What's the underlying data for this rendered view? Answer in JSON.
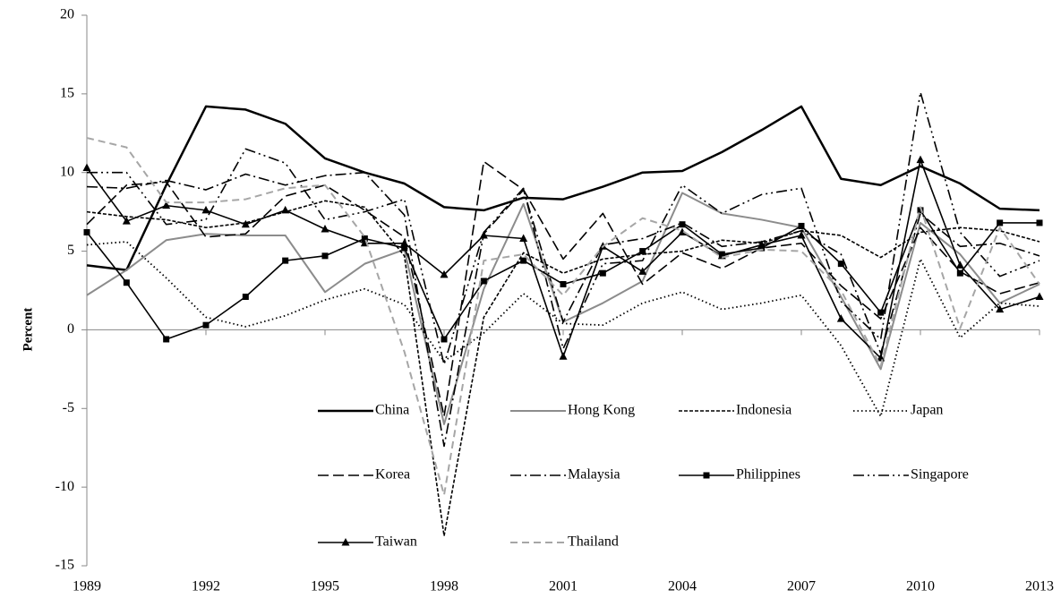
{
  "chart_data": {
    "type": "line",
    "y_label": "Percent",
    "x": [
      1989,
      1990,
      1991,
      1992,
      1993,
      1994,
      1995,
      1996,
      1997,
      1998,
      1999,
      2000,
      2001,
      2002,
      2003,
      2004,
      2005,
      2006,
      2007,
      2008,
      2009,
      2010,
      2011,
      2012,
      2013
    ],
    "xlim": [
      1989,
      2013
    ],
    "xticks": [
      1989,
      1992,
      1995,
      1998,
      2001,
      2004,
      2007,
      2010,
      2013
    ],
    "ylim": [
      -15,
      20
    ],
    "yticks": [
      -15,
      -10,
      -5,
      0,
      5,
      10,
      15,
      20
    ],
    "grid": false,
    "series": [
      {
        "name": "China",
        "color": "#000000",
        "width": 2.5,
        "dash": "none",
        "marker": "none",
        "values": [
          4.1,
          3.8,
          9.2,
          14.2,
          14.0,
          13.1,
          10.9,
          10.0,
          9.3,
          7.8,
          7.6,
          8.4,
          8.3,
          9.1,
          10.0,
          10.1,
          11.3,
          12.7,
          14.2,
          9.6,
          9.2,
          10.4,
          9.3,
          7.7,
          7.6
        ]
      },
      {
        "name": "Hong Kong",
        "color": "#8c8c8c",
        "width": 2,
        "dash": "none",
        "marker": "none",
        "values": [
          2.2,
          3.8,
          5.7,
          6.1,
          6.0,
          6.0,
          2.4,
          4.2,
          5.1,
          -6.0,
          2.6,
          8.0,
          0.5,
          1.7,
          3.1,
          8.7,
          7.4,
          7.0,
          6.5,
          2.1,
          -2.5,
          6.8,
          4.8,
          1.7,
          2.9
        ]
      },
      {
        "name": "Indonesia",
        "color": "#000000",
        "width": 1.6,
        "dash": "4 2",
        "marker": "none",
        "values": [
          7.5,
          7.2,
          7.0,
          6.5,
          6.8,
          7.5,
          8.2,
          7.8,
          4.7,
          -13.1,
          0.8,
          4.9,
          3.6,
          4.5,
          4.8,
          5.0,
          5.7,
          5.5,
          6.3,
          6.0,
          4.6,
          6.2,
          6.5,
          6.3,
          5.6
        ]
      },
      {
        "name": "Japan",
        "color": "#000000",
        "width": 1.8,
        "dash": "1.5 3",
        "marker": "none",
        "values": [
          5.4,
          5.6,
          3.3,
          0.8,
          0.2,
          0.9,
          1.9,
          2.6,
          1.6,
          -2.0,
          -0.2,
          2.3,
          0.4,
          0.3,
          1.7,
          2.4,
          1.3,
          1.7,
          2.2,
          -1.0,
          -5.5,
          4.5,
          -0.5,
          1.7,
          1.5
        ]
      },
      {
        "name": "Korea",
        "color": "#000000",
        "width": 1.6,
        "dash": "12 5",
        "marker": "none",
        "values": [
          6.7,
          9.2,
          9.4,
          5.9,
          6.1,
          8.5,
          9.2,
          7.6,
          5.9,
          -5.5,
          10.7,
          8.9,
          4.5,
          7.4,
          2.9,
          4.9,
          3.9,
          5.2,
          5.5,
          2.8,
          0.7,
          6.5,
          3.7,
          2.3,
          3.0
        ]
      },
      {
        "name": "Malaysia",
        "color": "#000000",
        "width": 1.6,
        "dash": "12 4 2 4",
        "marker": "none",
        "values": [
          9.1,
          9.0,
          9.5,
          8.9,
          9.9,
          9.2,
          9.8,
          10.0,
          7.3,
          -7.4,
          6.1,
          8.9,
          0.5,
          5.4,
          5.8,
          6.8,
          5.3,
          5.6,
          6.3,
          4.8,
          -1.5,
          7.4,
          5.3,
          5.5,
          4.7
        ]
      },
      {
        "name": "Philippines",
        "color": "#000000",
        "width": 1.6,
        "dash": "none",
        "marker": "square",
        "values": [
          6.2,
          3.0,
          -0.6,
          0.3,
          2.1,
          4.4,
          4.7,
          5.8,
          5.2,
          -0.6,
          3.1,
          4.4,
          2.9,
          3.6,
          5.0,
          6.7,
          4.8,
          5.2,
          6.6,
          4.2,
          1.1,
          7.6,
          3.6,
          6.8,
          6.8
        ]
      },
      {
        "name": "Singapore",
        "color": "#000000",
        "width": 1.6,
        "dash": "12 4 2 4 2 4",
        "marker": "none",
        "values": [
          10.0,
          10.0,
          6.7,
          7.0,
          11.5,
          10.6,
          7.0,
          7.5,
          8.3,
          -2.2,
          6.2,
          9.0,
          -1.2,
          4.2,
          4.4,
          9.2,
          7.4,
          8.6,
          9.0,
          1.8,
          -0.6,
          15.1,
          6.2,
          3.4,
          4.4
        ]
      },
      {
        "name": "Taiwan",
        "color": "#000000",
        "width": 1.6,
        "dash": "none",
        "marker": "triangle",
        "values": [
          10.3,
          6.9,
          7.9,
          7.6,
          6.7,
          7.6,
          6.4,
          5.5,
          5.5,
          3.5,
          6.0,
          5.8,
          -1.7,
          5.3,
          3.7,
          6.2,
          4.7,
          5.4,
          6.0,
          0.7,
          -1.8,
          10.8,
          4.1,
          1.3,
          2.1
        ]
      },
      {
        "name": "Thailand",
        "color": "#a6a6a6",
        "width": 2,
        "dash": "8 5",
        "marker": "none",
        "values": [
          12.2,
          11.6,
          8.1,
          8.1,
          8.3,
          9.0,
          9.2,
          5.9,
          -1.4,
          -10.5,
          4.4,
          4.8,
          2.2,
          5.3,
          7.1,
          6.3,
          4.6,
          5.1,
          5.0,
          2.5,
          -2.3,
          7.8,
          0.1,
          6.5,
          2.9
        ]
      }
    ]
  }
}
